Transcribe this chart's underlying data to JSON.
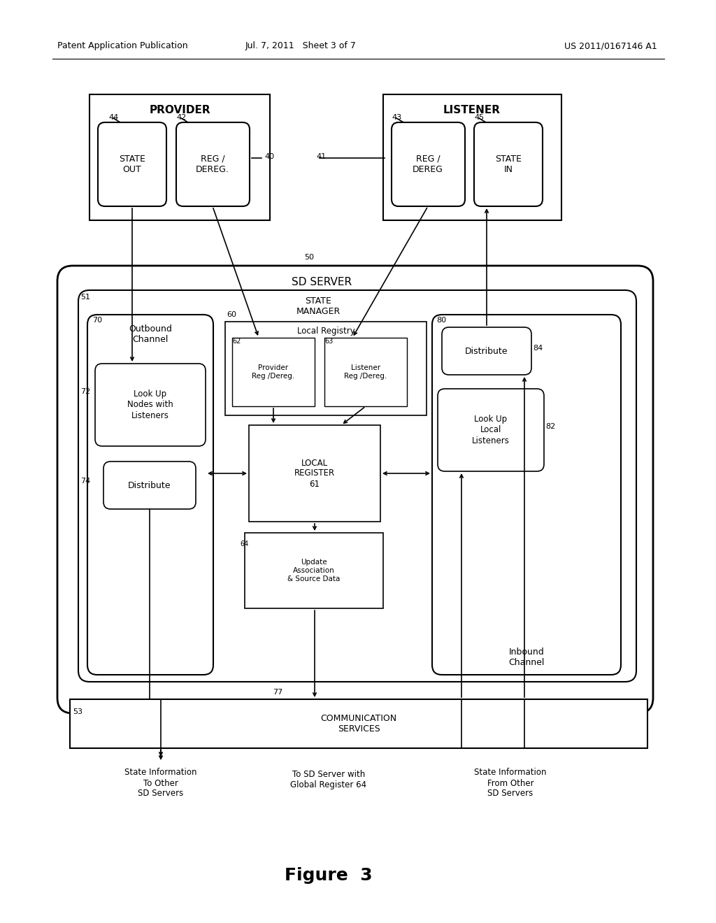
{
  "header_left": "Patent Application Publication",
  "header_mid": "Jul. 7, 2011   Sheet 3 of 7",
  "header_right": "US 2011/0167146 A1",
  "figure_label": "Figure  3",
  "bg": "#ffffff",
  "provider_label": "PROVIDER",
  "listener_label": "LISTENER",
  "sd_server_label": "SD SERVER",
  "bottom_label_left": "State Information\nTo Other\nSD Servers",
  "bottom_label_mid": "To SD Server with\nGlobal Register 64",
  "bottom_label_right": "State Information\nFrom Other\nSD Servers",
  "communication_services": "COMMUNICATION\nSERVICES"
}
